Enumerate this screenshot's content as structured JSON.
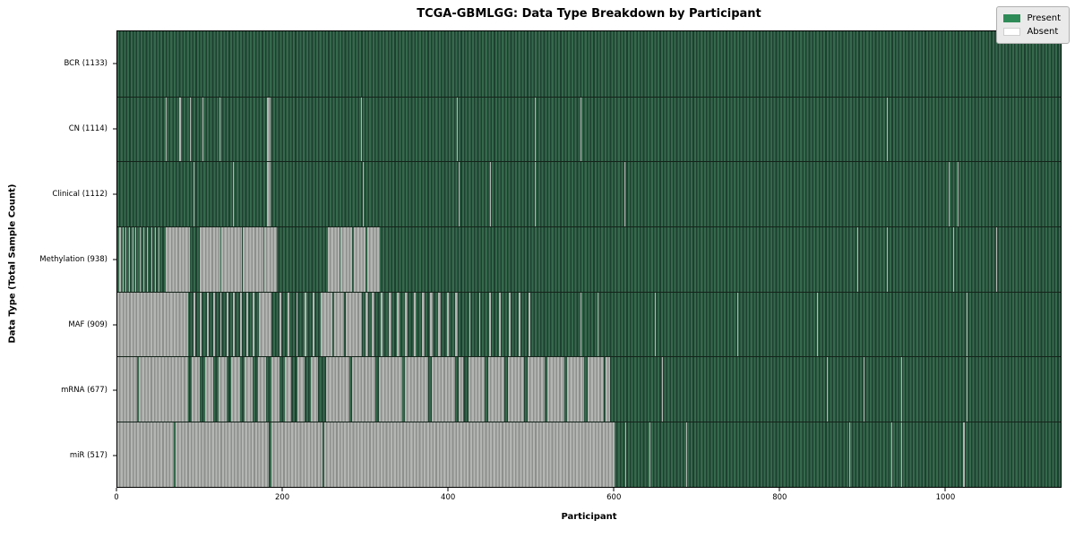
{
  "title": "TCGA-GBMLGG: Data Type Breakdown by Participant",
  "xlabel": "Participant",
  "ylabel": "Data Type (Total Sample Count)",
  "legend": {
    "present_label": "Present",
    "absent_label": "Absent"
  },
  "colors": {
    "present": "#2e8b57",
    "absent": "#ffffff",
    "legend_bg": "#eaeaea",
    "frame": "#000000"
  },
  "chart_data": {
    "type": "heatmap",
    "title": "TCGA-GBMLGG: Data Type Breakdown by Participant",
    "xlabel": "Participant",
    "ylabel": "Data Type (Total Sample Count)",
    "legend_entries": [
      "Present",
      "Absent"
    ],
    "legend_position": "upper right",
    "n_participants": 1133,
    "x_max": 1140,
    "x_ticks": [
      0,
      200,
      400,
      600,
      800,
      1000
    ],
    "rows": [
      {
        "name": "BCR",
        "label": "BCR (1133)",
        "present_count": 1133,
        "absent_segments": []
      },
      {
        "name": "CN",
        "label": "CN (1114)",
        "present_count": 1114,
        "absent_segments": [
          [
            59,
            60
          ],
          [
            75,
            77
          ],
          [
            88,
            89
          ],
          [
            103,
            104
          ],
          [
            123,
            124
          ],
          [
            181,
            185
          ],
          [
            295,
            296
          ],
          [
            410,
            411
          ],
          [
            504,
            505
          ],
          [
            560,
            561
          ],
          [
            930,
            931
          ]
        ]
      },
      {
        "name": "Clinical",
        "label": "Clinical (1112)",
        "present_count": 1112,
        "absent_segments": [
          [
            92,
            93
          ],
          [
            140,
            141
          ],
          [
            181,
            185
          ],
          [
            297,
            298
          ],
          [
            412,
            413
          ],
          [
            450,
            451
          ],
          [
            504,
            505
          ],
          [
            613,
            614
          ],
          [
            1005,
            1006
          ],
          [
            1016,
            1017
          ]
        ]
      },
      {
        "name": "Methylation",
        "label": "Methylation (938)",
        "present_count": 938,
        "absent_segments": [
          [
            2,
            4
          ],
          [
            6,
            7
          ],
          [
            10,
            11
          ],
          [
            14,
            15
          ],
          [
            18,
            19
          ],
          [
            22,
            23
          ],
          [
            27,
            28
          ],
          [
            31,
            33
          ],
          [
            36,
            37
          ],
          [
            41,
            42
          ],
          [
            45,
            46
          ],
          [
            50,
            51
          ],
          [
            59,
            88
          ],
          [
            100,
            124
          ],
          [
            126,
            150
          ],
          [
            152,
            176
          ],
          [
            178,
            193
          ],
          [
            254,
            268
          ],
          [
            270,
            284
          ],
          [
            286,
            300
          ],
          [
            302,
            317
          ],
          [
            894,
            895
          ],
          [
            930,
            931
          ],
          [
            1010,
            1011
          ],
          [
            1062,
            1063
          ]
        ]
      },
      {
        "name": "MAF",
        "label": "MAF (909)",
        "present_count": 909,
        "absent_segments": [
          [
            0,
            86
          ],
          [
            92,
            94
          ],
          [
            100,
            102
          ],
          [
            108,
            110
          ],
          [
            116,
            118
          ],
          [
            124,
            126
          ],
          [
            132,
            134
          ],
          [
            140,
            142
          ],
          [
            148,
            150
          ],
          [
            156,
            158
          ],
          [
            164,
            166
          ],
          [
            171,
            186
          ],
          [
            196,
            198
          ],
          [
            206,
            208
          ],
          [
            216,
            218
          ],
          [
            226,
            228
          ],
          [
            236,
            238
          ],
          [
            246,
            260
          ],
          [
            262,
            274
          ],
          [
            276,
            296
          ],
          [
            300,
            303
          ],
          [
            308,
            311
          ],
          [
            318,
            321
          ],
          [
            328,
            331
          ],
          [
            338,
            341
          ],
          [
            348,
            351
          ],
          [
            358,
            361
          ],
          [
            368,
            371
          ],
          [
            378,
            381
          ],
          [
            388,
            391
          ],
          [
            398,
            401
          ],
          [
            408,
            411
          ],
          [
            425,
            427
          ],
          [
            437,
            439
          ],
          [
            449,
            451
          ],
          [
            461,
            463
          ],
          [
            473,
            475
          ],
          [
            485,
            487
          ],
          [
            497,
            499
          ],
          [
            560,
            561
          ],
          [
            580,
            581
          ],
          [
            650,
            651
          ],
          [
            749,
            750
          ],
          [
            846,
            847
          ],
          [
            1026,
            1027
          ]
        ]
      },
      {
        "name": "mRNA",
        "label": "mRNA (677)",
        "present_count": 677,
        "absent_segments": [
          [
            0,
            24
          ],
          [
            26,
            86
          ],
          [
            90,
            100
          ],
          [
            106,
            116
          ],
          [
            122,
            132
          ],
          [
            138,
            148
          ],
          [
            154,
            164
          ],
          [
            170,
            180
          ],
          [
            186,
            196
          ],
          [
            202,
            210
          ],
          [
            218,
            226
          ],
          [
            234,
            242
          ],
          [
            252,
            280
          ],
          [
            284,
            312
          ],
          [
            316,
            344
          ],
          [
            348,
            376
          ],
          [
            380,
            408
          ],
          [
            412,
            418
          ],
          [
            424,
            444
          ],
          [
            448,
            468
          ],
          [
            472,
            492
          ],
          [
            496,
            516
          ],
          [
            520,
            540
          ],
          [
            544,
            564
          ],
          [
            568,
            588
          ],
          [
            590,
            595
          ],
          [
            658,
            659
          ],
          [
            857,
            858
          ],
          [
            902,
            903
          ],
          [
            947,
            948
          ],
          [
            1026,
            1027
          ]
        ]
      },
      {
        "name": "miR",
        "label": "miR (517)",
        "present_count": 517,
        "absent_segments": [
          [
            0,
            68
          ],
          [
            70,
            183
          ],
          [
            186,
            248
          ],
          [
            250,
            601
          ],
          [
            614,
            615
          ],
          [
            643,
            644
          ],
          [
            688,
            689
          ],
          [
            884,
            885
          ],
          [
            935,
            936
          ],
          [
            947,
            948
          ],
          [
            1022,
            1024
          ]
        ]
      }
    ]
  }
}
